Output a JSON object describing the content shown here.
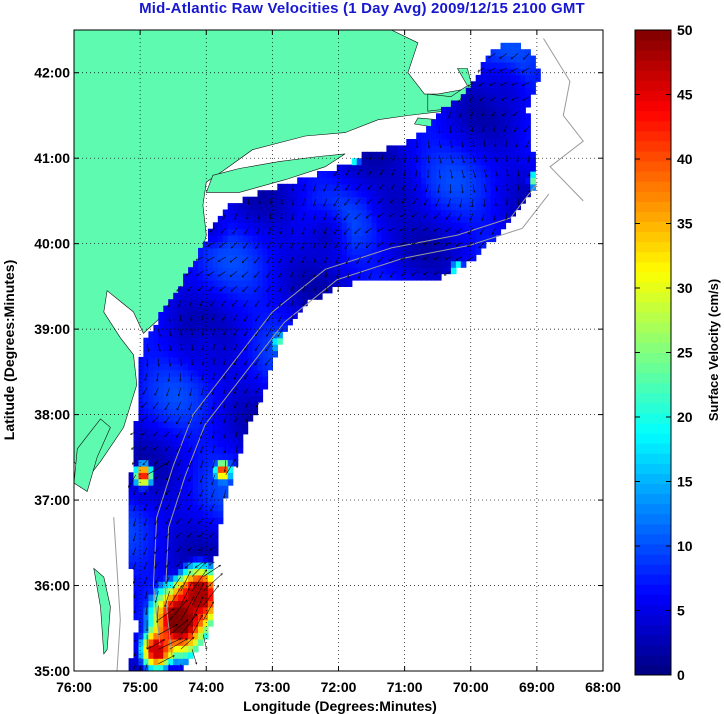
{
  "chart_data": {
    "type": "heatmap",
    "title": "Mid-Atlantic Raw Velocities (1 Day Avg) 2009/12/15 2100 GMT",
    "xlabel": "Longitude (Degrees:Minutes)",
    "ylabel": "Latitude (Degrees:Minutes)",
    "colorbar_label": "Surface Velocity (cm/s)",
    "xlim": [
      -76,
      -68
    ],
    "ylim": [
      35,
      42.5
    ],
    "x_ticks": [
      {
        "value": -76,
        "label": "76:00"
      },
      {
        "value": -75,
        "label": "75:00"
      },
      {
        "value": -74,
        "label": "74:00"
      },
      {
        "value": -73,
        "label": "73:00"
      },
      {
        "value": -72,
        "label": "72:00"
      },
      {
        "value": -71,
        "label": "71:00"
      },
      {
        "value": -70,
        "label": "70:00"
      },
      {
        "value": -69,
        "label": "69:00"
      },
      {
        "value": -68,
        "label": "68:00"
      }
    ],
    "y_ticks": [
      {
        "value": 35,
        "label": "35:00"
      },
      {
        "value": 36,
        "label": "36:00"
      },
      {
        "value": 37,
        "label": "37:00"
      },
      {
        "value": 38,
        "label": "38:00"
      },
      {
        "value": 39,
        "label": "39:00"
      },
      {
        "value": 40,
        "label": "40:00"
      },
      {
        "value": 41,
        "label": "41:00"
      },
      {
        "value": 42,
        "label": "42:00"
      }
    ],
    "colorbar": {
      "min": 0,
      "max": 50,
      "ticks": [
        {
          "value": 0,
          "label": "0"
        },
        {
          "value": 5,
          "label": "5"
        },
        {
          "value": 10,
          "label": "10"
        },
        {
          "value": 15,
          "label": "15"
        },
        {
          "value": 20,
          "label": "20"
        },
        {
          "value": 25,
          "label": "25"
        },
        {
          "value": 30,
          "label": "30"
        },
        {
          "value": 35,
          "label": "35"
        },
        {
          "value": 40,
          "label": "40"
        },
        {
          "value": 45,
          "label": "45"
        },
        {
          "value": 50,
          "label": "50"
        }
      ]
    },
    "grid": true,
    "colors": {
      "land": "#5dfab0",
      "grid": "#000000",
      "arrow": "#000000",
      "bathymetry": "#9a9a9a",
      "title": "#1717d1"
    },
    "velocity_field": {
      "coverage_polygon": [
        [
          -75.2,
          35.0
        ],
        [
          -75.1,
          35.25
        ],
        [
          -75.05,
          35.55
        ],
        [
          -75.1,
          35.9
        ],
        [
          -75.15,
          36.35
        ],
        [
          -75.2,
          36.8
        ],
        [
          -75.15,
          37.15
        ],
        [
          -75.12,
          37.55
        ],
        [
          -75.05,
          38.0
        ],
        [
          -75.05,
          38.5
        ],
        [
          -74.9,
          38.9
        ],
        [
          -74.55,
          39.35
        ],
        [
          -74.2,
          39.75
        ],
        [
          -73.95,
          40.15
        ],
        [
          -73.65,
          40.45
        ],
        [
          -73.2,
          40.6
        ],
        [
          -72.6,
          40.75
        ],
        [
          -72.0,
          40.9
        ],
        [
          -71.6,
          41.05
        ],
        [
          -71.1,
          41.15
        ],
        [
          -70.7,
          41.3
        ],
        [
          -70.45,
          41.55
        ],
        [
          -70.1,
          41.75
        ],
        [
          -69.85,
          42.05
        ],
        [
          -69.65,
          42.3
        ],
        [
          -69.35,
          42.35
        ],
        [
          -69.05,
          42.2
        ],
        [
          -68.95,
          41.95
        ],
        [
          -69.15,
          41.6
        ],
        [
          -69.1,
          41.3
        ],
        [
          -69.05,
          41.0
        ],
        [
          -69.05,
          40.6
        ],
        [
          -69.35,
          40.3
        ],
        [
          -69.8,
          39.95
        ],
        [
          -70.15,
          39.7
        ],
        [
          -70.5,
          39.6
        ],
        [
          -71.0,
          39.55
        ],
        [
          -71.5,
          39.6
        ],
        [
          -72.0,
          39.5
        ],
        [
          -72.5,
          39.3
        ],
        [
          -72.8,
          39.0
        ],
        [
          -73.0,
          38.6
        ],
        [
          -73.15,
          38.2
        ],
        [
          -73.4,
          37.8
        ],
        [
          -73.6,
          37.3
        ],
        [
          -73.75,
          36.9
        ],
        [
          -73.85,
          36.5
        ],
        [
          -73.9,
          36.0
        ],
        [
          -73.9,
          35.6
        ],
        [
          -74.1,
          35.25
        ],
        [
          -74.4,
          35.0
        ]
      ],
      "background_speed_cm_s": 6,
      "hotspots": [
        {
          "lon": -74.4,
          "lat": 35.6,
          "radius_deg": 0.55,
          "speed_cm_s": 50
        },
        {
          "lon": -74.1,
          "lat": 35.9,
          "radius_deg": 0.45,
          "speed_cm_s": 48
        },
        {
          "lon": -74.75,
          "lat": 35.25,
          "radius_deg": 0.3,
          "speed_cm_s": 46
        },
        {
          "lon": -74.95,
          "lat": 37.3,
          "radius_deg": 0.18,
          "speed_cm_s": 42
        },
        {
          "lon": -73.75,
          "lat": 37.35,
          "radius_deg": 0.15,
          "speed_cm_s": 40
        },
        {
          "lon": -69.0,
          "lat": 40.75,
          "radius_deg": 0.15,
          "speed_cm_s": 28
        },
        {
          "lon": -70.2,
          "lat": 39.7,
          "radius_deg": 0.12,
          "speed_cm_s": 26
        },
        {
          "lon": -72.9,
          "lat": 38.85,
          "radius_deg": 0.12,
          "speed_cm_s": 22
        },
        {
          "lon": -71.75,
          "lat": 41.0,
          "radius_deg": 0.1,
          "speed_cm_s": 22
        }
      ],
      "slow_spots": [
        {
          "lon": -71.1,
          "lat": 40.5,
          "radius_deg": 0.5,
          "speed_cm_s": 3
        },
        {
          "lon": -72.2,
          "lat": 40.1,
          "radius_deg": 0.45,
          "speed_cm_s": 3
        },
        {
          "lon": -73.9,
          "lat": 40.2,
          "radius_deg": 0.3,
          "speed_cm_s": 4
        },
        {
          "lon": -69.5,
          "lat": 41.8,
          "radius_deg": 0.4,
          "speed_cm_s": 4
        },
        {
          "lon": -74.0,
          "lat": 38.8,
          "radius_deg": 0.4,
          "speed_cm_s": 5
        }
      ],
      "mean_direction": "southwest"
    }
  }
}
